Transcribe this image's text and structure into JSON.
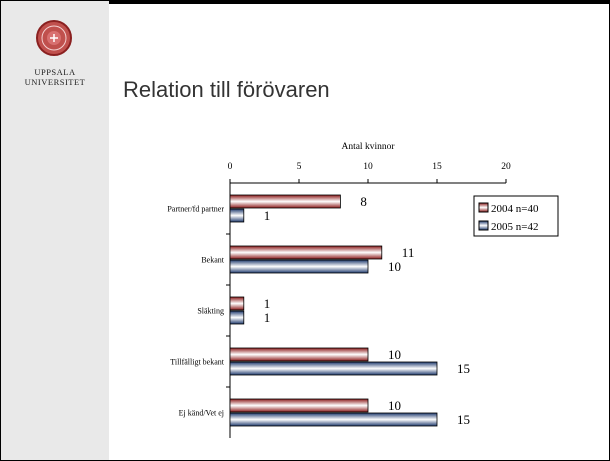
{
  "slide": {
    "title": "Relation till förövaren",
    "logo": {
      "line1": "UPPSALA",
      "line2": "UNIVERSITET"
    }
  },
  "chart_data": {
    "type": "bar",
    "orientation": "horizontal",
    "title": "Antal kvinnor",
    "xlim": [
      0,
      20
    ],
    "xticks": [
      0,
      5,
      10,
      15,
      20
    ],
    "categories": [
      "Partner/fd partner",
      "Bekant",
      "Släkting",
      "Tillfälligt bekant",
      "Ej känd/Vet ej"
    ],
    "series": [
      {
        "name": "2004 n=40",
        "values": [
          8,
          11,
          1,
          10,
          10
        ],
        "color": "#8b1a1a"
      },
      {
        "name": "2005 n=42",
        "values": [
          1,
          10,
          1,
          15,
          15
        ],
        "color": "#1f3a6e"
      }
    ],
    "legend_position": "right",
    "grid": false
  }
}
